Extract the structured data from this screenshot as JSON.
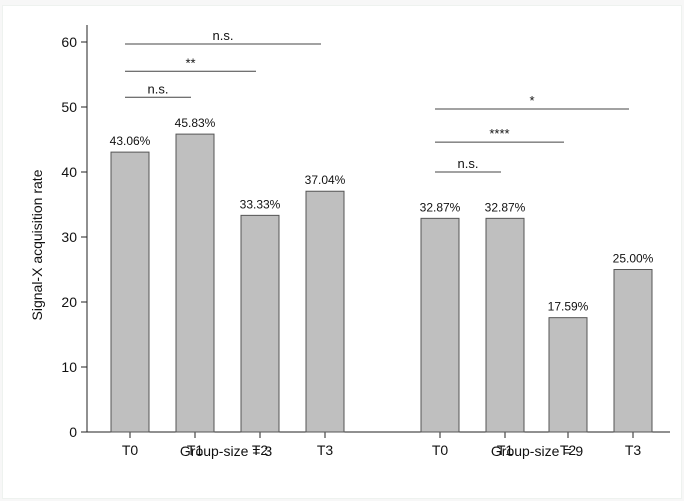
{
  "chart_data": {
    "type": "bar",
    "ylabel": "Signal-X acquisition rate",
    "ylim": [
      0,
      62
    ],
    "yticks": [
      0,
      10,
      20,
      30,
      40,
      50,
      60
    ],
    "bar_color": "#bfbfbf",
    "grid": false,
    "groups": [
      {
        "label": "Group-size = 3",
        "categories": [
          "T0",
          "T1",
          "T2",
          "T3"
        ],
        "values": [
          43.06,
          45.83,
          33.33,
          37.04
        ],
        "value_labels": [
          "43.06%",
          "45.83%",
          "33.33%",
          "37.04%"
        ],
        "significance": [
          {
            "from": "T0",
            "to": "T1",
            "label": "n.s.",
            "y": 51.5
          },
          {
            "from": "T0",
            "to": "T2",
            "label": "**",
            "y": 55.5
          },
          {
            "from": "T0",
            "to": "T3",
            "label": "n.s.",
            "y": 59.7
          }
        ]
      },
      {
        "label": "Group-size = 9",
        "categories": [
          "T0",
          "T1",
          "T2",
          "T3"
        ],
        "values": [
          32.87,
          32.87,
          17.59,
          25.0
        ],
        "value_labels": [
          "32.87%",
          "32.87%",
          "17.59%",
          "25.00%"
        ],
        "significance": [
          {
            "from": "T0",
            "to": "T1",
            "label": "n.s.",
            "y": 40.0
          },
          {
            "from": "T0",
            "to": "T2",
            "label": "****",
            "y": 44.6
          },
          {
            "from": "T0",
            "to": "T3",
            "label": "*",
            "y": 49.7
          }
        ]
      }
    ]
  }
}
